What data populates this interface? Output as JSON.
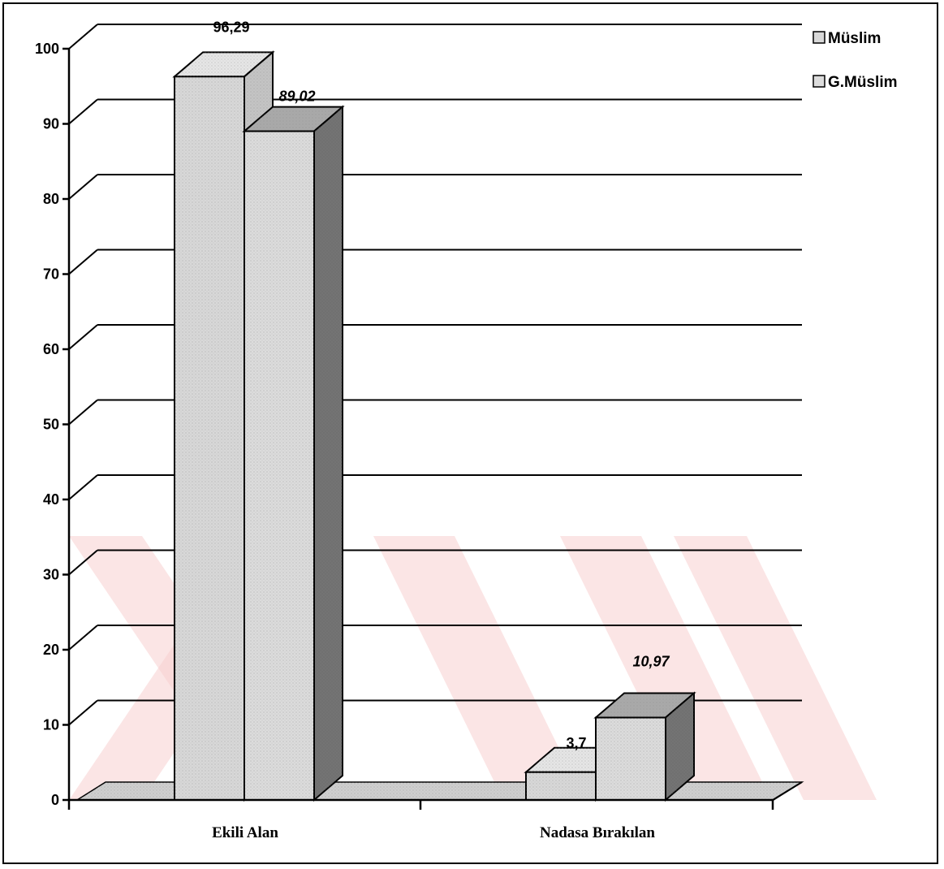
{
  "chart_data": {
    "type": "bar",
    "categories": [
      "Ekili Alan",
      "Nadasa Bırakılan"
    ],
    "series": [
      {
        "name": "Müslim",
        "values": [
          96.29,
          3.7
        ],
        "labels": [
          "96,29",
          "3,7"
        ],
        "label_style": "normal"
      },
      {
        "name": "G.Müslim",
        "values": [
          89.02,
          10.97
        ],
        "labels": [
          "89,02",
          "10,97"
        ],
        "label_style": "italic"
      }
    ],
    "ylim": [
      0,
      100
    ],
    "yticks": [
      0,
      10,
      20,
      30,
      40,
      50,
      60,
      70,
      80,
      90,
      100
    ],
    "grid": true,
    "legend_position": "top-right",
    "three_d": true,
    "colors": {
      "series_1_front": "#d8d8d8",
      "series_1_top": "#e6e6e6",
      "series_1_side": "#c4c4c4",
      "series_2_front": "#dcdcdc",
      "series_2_top": "#a9a9a9",
      "series_2_side": "#707070",
      "floor": "#cfcfcf",
      "watermark": "#f7d0d0"
    }
  }
}
